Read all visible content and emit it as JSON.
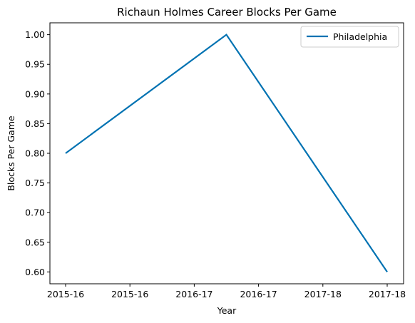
{
  "chart_data": {
    "type": "line",
    "title": "Richaun Holmes Career Blocks Per Game",
    "xlabel": "Year",
    "ylabel": "Blocks Per Game",
    "x_tick_labels": [
      "2015-16",
      "2015-16",
      "2016-17",
      "2016-17",
      "2017-18",
      "2017-18"
    ],
    "y_ticks": [
      0.6,
      0.65,
      0.7,
      0.75,
      0.8,
      0.85,
      0.9,
      0.95,
      1.0
    ],
    "ylim": [
      0.58,
      1.02
    ],
    "series": [
      {
        "name": "Philadelphia",
        "color": "#0072b2",
        "points": [
          {
            "x": "2015-16",
            "y": 0.8
          },
          {
            "x": "2016-17",
            "y": 1.0
          },
          {
            "x": "2017-18",
            "y": 0.6
          }
        ]
      }
    ],
    "legend_position": "top-right",
    "grid": false
  }
}
